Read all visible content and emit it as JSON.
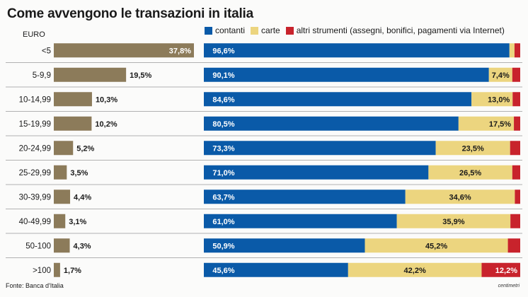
{
  "chart_data": [
    {
      "type": "bar",
      "orientation": "horizontal",
      "title": "Come avvengono le transazioni in italia",
      "unit_label": "EURO",
      "categories": [
        "<5",
        "5-9,9",
        "10-14,99",
        "15-19,99",
        "20-24,99",
        "25-29,99",
        "30-39,99",
        "40-49,99",
        "50-100",
        ">100"
      ],
      "values": [
        37.8,
        19.5,
        10.3,
        10.2,
        5.2,
        3.5,
        4.4,
        3.1,
        4.3,
        1.7
      ],
      "value_labels": [
        "37,8%",
        "19,5%",
        "10,3%",
        "10,2%",
        "5,2%",
        "3,5%",
        "4,4%",
        "3,1%",
        "4,3%",
        "1,7%"
      ],
      "xlim": [
        0,
        37.8
      ],
      "color": "#8c7b5a"
    },
    {
      "type": "bar",
      "orientation": "horizontal",
      "stacked": true,
      "categories": [
        "<5",
        "5-9,9",
        "10-14,99",
        "15-19,99",
        "20-24,99",
        "25-29,99",
        "30-39,99",
        "40-49,99",
        "50-100",
        ">100"
      ],
      "series": [
        {
          "name": "contanti",
          "color": "#0a5aa8",
          "values": [
            96.6,
            90.1,
            84.6,
            80.5,
            73.3,
            71.0,
            63.7,
            61.0,
            50.9,
            45.6
          ],
          "labels": [
            "96,6%",
            "90,1%",
            "84,6%",
            "80,5%",
            "73,3%",
            "71,0%",
            "63,7%",
            "61,0%",
            "50,9%",
            "45,6%"
          ]
        },
        {
          "name": "carte",
          "color": "#ecd57f",
          "values": [
            1.6,
            7.4,
            13.0,
            17.5,
            23.5,
            26.5,
            34.6,
            35.9,
            45.2,
            42.2
          ],
          "labels": [
            "",
            "7,4%",
            "13,0%",
            "17,5%",
            "23,5%",
            "26,5%",
            "34,6%",
            "35,9%",
            "45,2%",
            "42,2%"
          ]
        },
        {
          "name": "altri strumenti (assegni, bonifici, pagamenti via Internet)",
          "color": "#c8232c",
          "values": [
            1.8,
            2.5,
            2.4,
            2.0,
            3.2,
            2.5,
            1.7,
            3.1,
            3.9,
            12.2
          ],
          "labels": [
            "",
            "",
            "",
            "",
            "",
            "",
            "",
            "",
            "",
            "12,2%"
          ]
        }
      ],
      "xlim": [
        0,
        100
      ]
    }
  ],
  "source": "Fonte: Banca d'Italia",
  "credit": "centimetri"
}
